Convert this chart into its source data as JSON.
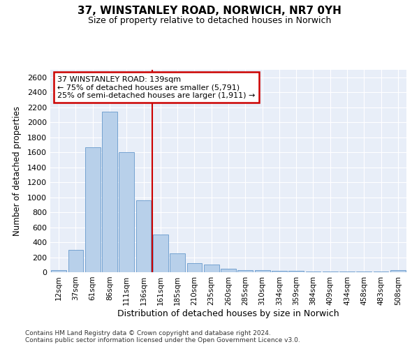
{
  "title": "37, WINSTANLEY ROAD, NORWICH, NR7 0YH",
  "subtitle": "Size of property relative to detached houses in Norwich",
  "xlabel": "Distribution of detached houses by size in Norwich",
  "ylabel": "Number of detached properties",
  "bar_color": "#b8d0ea",
  "bar_edge_color": "#6699cc",
  "vline_color": "#cc0000",
  "vline_x": 5.5,
  "annotation_line1": "37 WINSTANLEY ROAD: 139sqm",
  "annotation_line2": "← 75% of detached houses are smaller (5,791)",
  "annotation_line3": "25% of semi-detached houses are larger (1,911) →",
  "annotation_box_color": "#cc0000",
  "categories": [
    "12sqm",
    "37sqm",
    "61sqm",
    "86sqm",
    "111sqm",
    "136sqm",
    "161sqm",
    "185sqm",
    "210sqm",
    "235sqm",
    "260sqm",
    "285sqm",
    "310sqm",
    "334sqm",
    "359sqm",
    "384sqm",
    "409sqm",
    "434sqm",
    "458sqm",
    "483sqm",
    "508sqm"
  ],
  "values": [
    25,
    300,
    1670,
    2140,
    1600,
    960,
    500,
    250,
    120,
    100,
    50,
    30,
    25,
    15,
    15,
    10,
    10,
    10,
    5,
    5,
    25
  ],
  "ylim": [
    0,
    2700
  ],
  "yticks": [
    0,
    200,
    400,
    600,
    800,
    1000,
    1200,
    1400,
    1600,
    1800,
    2000,
    2200,
    2400,
    2600
  ],
  "footer_line1": "Contains HM Land Registry data © Crown copyright and database right 2024.",
  "footer_line2": "Contains public sector information licensed under the Open Government Licence v3.0.",
  "fig_bg_color": "#ffffff",
  "plot_bg_color": "#e8eef8",
  "grid_color": "#ffffff"
}
